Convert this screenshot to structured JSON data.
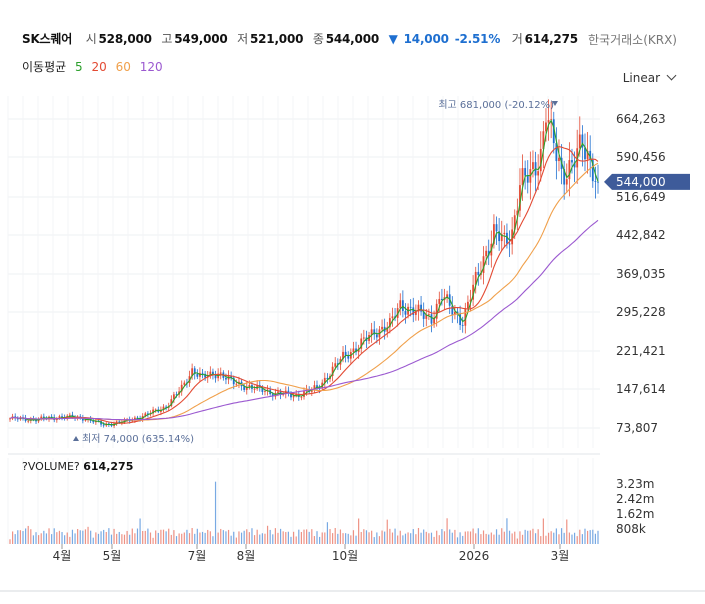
{
  "header": {
    "ticker": "SK스퀘어",
    "open_label": "시",
    "open": "528,000",
    "high_label": "고",
    "high": "549,000",
    "low_label": "저",
    "low": "521,000",
    "close_label": "종",
    "close": "544,000",
    "change_arrow": "▼",
    "change": "14,000",
    "change_pct": "-2.51%",
    "volume_label": "거",
    "volume": "614,275",
    "exchange": "한국거래소(KRX)"
  },
  "ma_legend": {
    "label": "이동평균",
    "items": [
      {
        "period": "5",
        "color": "#2ca02c"
      },
      {
        "period": "20",
        "color": "#e34a33"
      },
      {
        "period": "60",
        "color": "#f0a04b"
      },
      {
        "period": "120",
        "color": "#9b59d0"
      }
    ]
  },
  "scale_button": {
    "label": "Linear",
    "icon": "chevron-down-icon"
  },
  "chart_data": {
    "type": "candlestick",
    "price_axis_ticks": [
      "664,263",
      "590,456",
      "516,649",
      "442,842",
      "369,035",
      "295,228",
      "221,421",
      "147,614",
      "73,807"
    ],
    "price_tick_values": [
      664263,
      590456,
      516649,
      442842,
      369035,
      295228,
      221421,
      147614,
      73807
    ],
    "x_axis_ticks": [
      "4월",
      "5월",
      "7월",
      "8월",
      "10월",
      "2026",
      "3월"
    ],
    "current_price_label": "544,000",
    "current_price": 544000,
    "max_annotation": "최고 681,000 (-20.12%)",
    "max_price": 681000,
    "min_annotation": "최저 74,000 (635.14%)",
    "min_price": 74000,
    "volume_title": "?VOLUME?",
    "volume_value": "614,275",
    "volume_axis_ticks": [
      "3.23m",
      "2.42m",
      "1.62m",
      "808k"
    ],
    "volume_tick_values": [
      3230000,
      2420000,
      1620000,
      808000
    ],
    "close_path": [
      [
        0,
        92000
      ],
      [
        10,
        90000
      ],
      [
        20,
        95000
      ],
      [
        28,
        93000
      ],
      [
        36,
        80000
      ],
      [
        44,
        86000
      ],
      [
        52,
        98000
      ],
      [
        60,
        115000
      ],
      [
        66,
        150000
      ],
      [
        70,
        185000
      ],
      [
        74,
        170000
      ],
      [
        80,
        180000
      ],
      [
        86,
        160000
      ],
      [
        94,
        150000
      ],
      [
        102,
        140000
      ],
      [
        110,
        136000
      ],
      [
        118,
        150000
      ],
      [
        124,
        185000
      ],
      [
        128,
        210000
      ],
      [
        134,
        230000
      ],
      [
        140,
        258000
      ],
      [
        146,
        270000
      ],
      [
        150,
        310000
      ],
      [
        156,
        295000
      ],
      [
        162,
        285000
      ],
      [
        166,
        325000
      ],
      [
        170,
        300000
      ],
      [
        174,
        278000
      ],
      [
        178,
        340000
      ],
      [
        182,
        400000
      ],
      [
        186,
        445000
      ],
      [
        190,
        430000
      ],
      [
        193,
        450000
      ],
      [
        196,
        540000
      ],
      [
        200,
        555000
      ],
      [
        204,
        600000
      ],
      [
        206,
        681000
      ],
      [
        208,
        630000
      ],
      [
        212,
        560000
      ],
      [
        216,
        580000
      ],
      [
        220,
        610000
      ],
      [
        224,
        575000
      ],
      [
        226,
        544000
      ]
    ],
    "series": [
      {
        "name": "5",
        "color": "#2ca02c",
        "lag": 1,
        "offset": 0
      },
      {
        "name": "20",
        "color": "#e34a33",
        "lag": 5,
        "offset": 0
      },
      {
        "name": "60",
        "color": "#f0a04b",
        "lag": 16,
        "offset": 0
      },
      {
        "name": "120",
        "color": "#9b59d0",
        "lag": 32,
        "offset": 0
      }
    ],
    "up_color": "#e34a33",
    "down_color": "#1e6fd0",
    "current_price_color": "#3e5b9a"
  }
}
